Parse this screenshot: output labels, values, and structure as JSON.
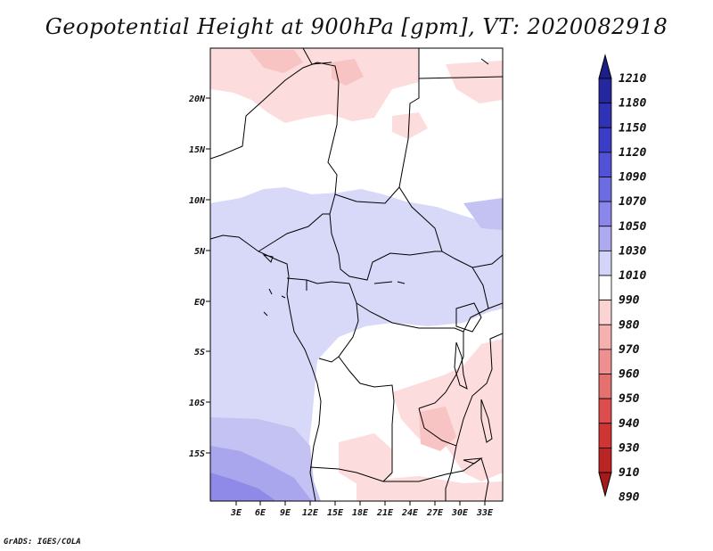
{
  "title": "Geopotential Height at 900hPa [gpm], VT: 2020082918",
  "credit": "GrADS: IGES/COLA",
  "map": {
    "variable": "Geopotential Height",
    "level": "900hPa",
    "units": "gpm",
    "valid_time": "2020082918",
    "lon_labels": [
      "3E",
      "6E",
      "9E",
      "12E",
      "15E",
      "18E",
      "21E",
      "24E",
      "27E",
      "30E",
      "33E"
    ],
    "lat_labels": [
      "20N",
      "15N",
      "10N",
      "5N",
      "EQ",
      "5S",
      "10S",
      "15S"
    ]
  },
  "colorbar": {
    "levels": [
      "1210",
      "1180",
      "1150",
      "1120",
      "1090",
      "1070",
      "1050",
      "1030",
      "1010",
      "990",
      "980",
      "970",
      "960",
      "950",
      "940",
      "930",
      "910",
      "890"
    ],
    "colors": [
      "#1c1f8a",
      "#24279e",
      "#2f32b4",
      "#3b3dc6",
      "#5152d6",
      "#6c6be2",
      "#8a86ea",
      "#aeaaf0",
      "#d4d4f8",
      "#ffffff",
      "#fcd3d3",
      "#f5b0b0",
      "#ee9090",
      "#e57070",
      "#dc4e4e",
      "#cf3535",
      "#bb2424",
      "#a61a1a"
    ]
  },
  "colors": {
    "sea_blue": "#d8d8f8",
    "land_white": "#ffffff",
    "pink_light": "#fcdcdc",
    "pink_mid": "#f7c3c3",
    "lavender": "#c4c2f2",
    "purple": "#a9a6ee"
  }
}
